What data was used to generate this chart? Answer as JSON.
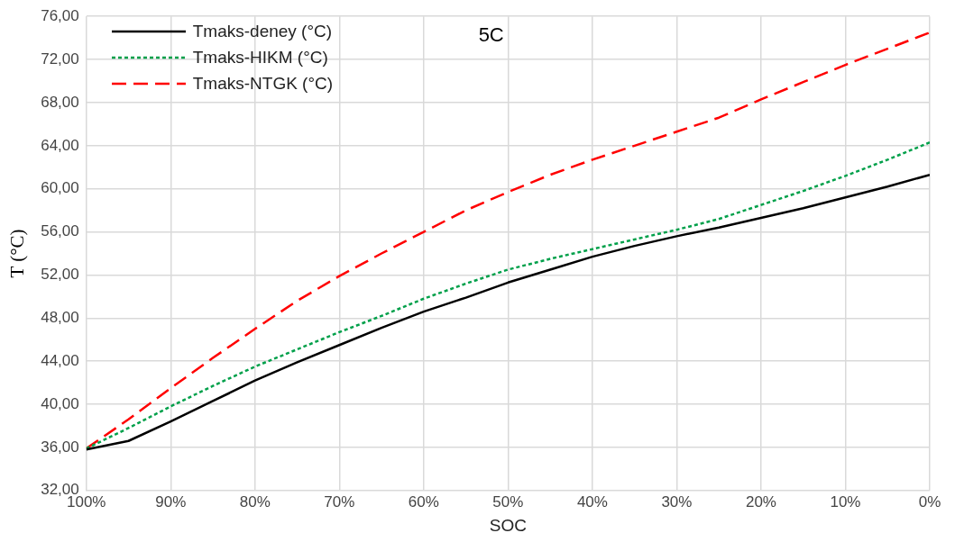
{
  "chart_data": {
    "type": "line",
    "xlabel": "SOC",
    "ylabel": "T (°C)",
    "annotations": [
      "5C"
    ],
    "x": [
      100,
      95,
      90,
      85,
      80,
      75,
      70,
      65,
      60,
      55,
      50,
      45,
      40,
      35,
      30,
      25,
      20,
      15,
      10,
      5,
      0
    ],
    "xlim": [
      100,
      0
    ],
    "xticks": [
      {
        "value": 100,
        "label": "100%"
      },
      {
        "value": 90,
        "label": "90%"
      },
      {
        "value": 80,
        "label": "80%"
      },
      {
        "value": 70,
        "label": "70%"
      },
      {
        "value": 60,
        "label": "60%"
      },
      {
        "value": 50,
        "label": "50%"
      },
      {
        "value": 40,
        "label": "40%"
      },
      {
        "value": 30,
        "label": "30%"
      },
      {
        "value": 20,
        "label": "20%"
      },
      {
        "value": 10,
        "label": "10%"
      },
      {
        "value": 0,
        "label": "0%"
      }
    ],
    "ylim": [
      32,
      76
    ],
    "yticks": [
      {
        "value": 32,
        "label": "32,00"
      },
      {
        "value": 36,
        "label": "36,00"
      },
      {
        "value": 40,
        "label": "40,00"
      },
      {
        "value": 44,
        "label": "44,00"
      },
      {
        "value": 48,
        "label": "48,00"
      },
      {
        "value": 52,
        "label": "52,00"
      },
      {
        "value": 56,
        "label": "56,00"
      },
      {
        "value": 60,
        "label": "60,00"
      },
      {
        "value": 64,
        "label": "64,00"
      },
      {
        "value": 68,
        "label": "68,00"
      },
      {
        "value": 72,
        "label": "72,00"
      },
      {
        "value": 76,
        "label": "76,00"
      }
    ],
    "grid": true,
    "legend": "top left",
    "marker": "none",
    "series": [
      {
        "name": "Tmaks-deney (°C)",
        "color": "#000000",
        "line_style": "solid",
        "values": [
          35.8,
          36.6,
          38.4,
          40.3,
          42.2,
          43.9,
          45.5,
          47.1,
          48.6,
          49.9,
          51.3,
          52.5,
          53.7,
          54.7,
          55.6,
          56.4,
          57.3,
          58.2,
          59.2,
          60.2,
          61.3
        ]
      },
      {
        "name": "Tmaks-HIKM (°C)",
        "color": "#00a04a",
        "line_style": "dotted",
        "values": [
          35.9,
          37.8,
          39.8,
          41.7,
          43.5,
          45.1,
          46.7,
          48.2,
          49.8,
          51.2,
          52.5,
          53.5,
          54.4,
          55.3,
          56.2,
          57.2,
          58.5,
          59.8,
          61.2,
          62.7,
          64.3
        ]
      },
      {
        "name": "Tmaks-NTGK (°C)",
        "color": "#ff0000",
        "line_style": "dashed",
        "values": [
          35.9,
          38.6,
          41.5,
          44.3,
          47.0,
          49.6,
          51.9,
          54.0,
          56.0,
          58.0,
          59.7,
          61.3,
          62.7,
          64.0,
          65.3,
          66.6,
          68.3,
          69.9,
          71.5,
          73.0,
          74.5
        ]
      }
    ]
  }
}
